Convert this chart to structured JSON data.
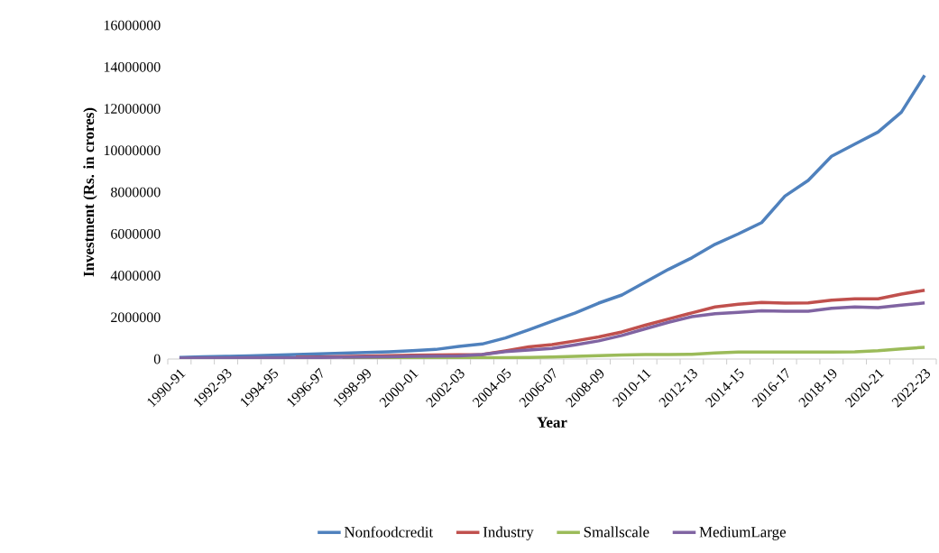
{
  "chart_data": {
    "type": "line",
    "xlabel": "Year",
    "ylabel": "Investment (Rs. in crores)",
    "categories": [
      "1990-91",
      null,
      "1992-93",
      null,
      "1994-95",
      null,
      "1996-97",
      null,
      "1998-99",
      null,
      "2000-01",
      null,
      "2002-03",
      null,
      "2004-05",
      null,
      "2006-07",
      null,
      "2008-09",
      null,
      "2010-11",
      null,
      "2012-13",
      null,
      "2014-15",
      null,
      "2016-17",
      null,
      "2018-19",
      null,
      "2020-21",
      null,
      "2022-23"
    ],
    "series": [
      {
        "name": "Nonfoodcredit",
        "color": "#4f81bd",
        "values": [
          80000,
          110000,
          130000,
          150000,
          180000,
          220000,
          250000,
          280000,
          310000,
          350000,
          400000,
          460000,
          610000,
          720000,
          1010000,
          1400000,
          1810000,
          2210000,
          2680000,
          3070000,
          3690000,
          4300000,
          4850000,
          5500000,
          6000000,
          6540000,
          7810000,
          8560000,
          9720000,
          10300000,
          10880000,
          11830000,
          13600000
        ]
      },
      {
        "name": "Industry",
        "color": "#c0504d",
        "values": [
          null,
          null,
          null,
          null,
          null,
          90000,
          100000,
          120000,
          140000,
          160000,
          180000,
          200000,
          210000,
          220000,
          390000,
          580000,
          690000,
          870000,
          1060000,
          1300000,
          1620000,
          1920000,
          2210000,
          2500000,
          2630000,
          2710000,
          2680000,
          2690000,
          2820000,
          2890000,
          2890000,
          3110000,
          3300000
        ]
      },
      {
        "name": "Smallscale",
        "color": "#9bbb59",
        "values": [
          null,
          null,
          null,
          null,
          null,
          null,
          null,
          40000,
          40000,
          50000,
          50000,
          60000,
          60000,
          70000,
          70000,
          80000,
          100000,
          130000,
          160000,
          190000,
          220000,
          220000,
          230000,
          290000,
          330000,
          330000,
          330000,
          330000,
          330000,
          350000,
          400000,
          490000,
          560000
        ]
      },
      {
        "name": "MediumLarge",
        "color": "#8064a2",
        "values": [
          40000,
          50000,
          50000,
          60000,
          60000,
          70000,
          80000,
          90000,
          100000,
          110000,
          130000,
          140000,
          150000,
          220000,
          360000,
          430000,
          510000,
          680000,
          870000,
          1130000,
          1450000,
          1760000,
          2030000,
          2170000,
          2240000,
          2310000,
          2290000,
          2290000,
          2430000,
          2500000,
          2460000,
          2580000,
          2690000
        ]
      }
    ],
    "ylim": [
      0,
      16000000
    ],
    "yticks": [
      0,
      2000000,
      4000000,
      6000000,
      8000000,
      10000000,
      12000000,
      14000000,
      16000000
    ],
    "legend": "bottom",
    "marker": "none",
    "line_style": "solid"
  }
}
